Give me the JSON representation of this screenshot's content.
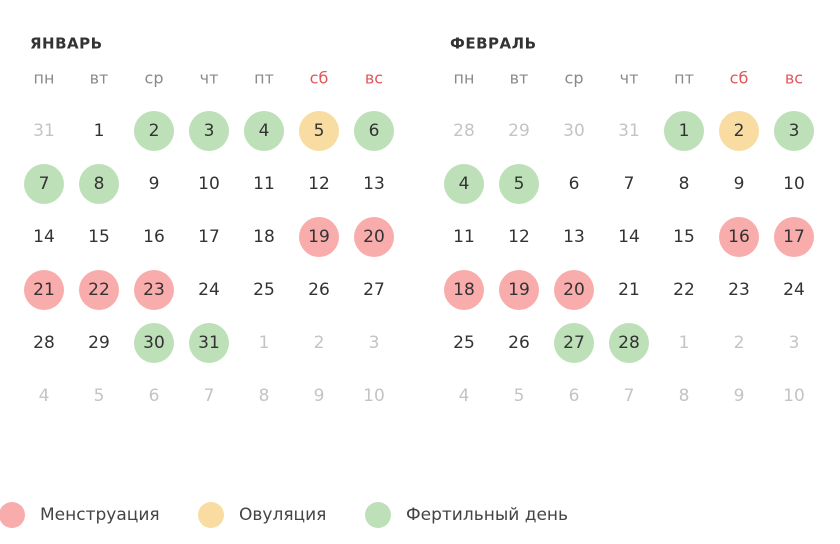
{
  "months": [
    {
      "name": "ЯНВАРЬ",
      "weekdays": [
        {
          "text": "пн",
          "color": "#8a8a8a"
        },
        {
          "text": "вт",
          "color": "#8a8a8a"
        },
        {
          "text": "ср",
          "color": "#8a8a8a"
        },
        {
          "text": "чт",
          "color": "#8a8a8a"
        },
        {
          "text": "пт",
          "color": "#8a8a8a"
        },
        {
          "text": "сб",
          "color": "#e0575b"
        },
        {
          "text": "вс",
          "color": "#e0575b"
        }
      ],
      "weeks": [
        [
          {
            "day": 31,
            "muted": true
          },
          {
            "day": 1
          },
          {
            "day": 2,
            "fill": "#bde0b8"
          },
          {
            "day": 3,
            "fill": "#bde0b8"
          },
          {
            "day": 4,
            "fill": "#bde0b8"
          },
          {
            "day": 5,
            "fill": "#f8dca2"
          },
          {
            "day": 6,
            "fill": "#bde0b8"
          }
        ],
        [
          {
            "day": 7,
            "fill": "#bde0b8"
          },
          {
            "day": 8,
            "fill": "#bde0b8"
          },
          {
            "day": 9
          },
          {
            "day": 10
          },
          {
            "day": 11
          },
          {
            "day": 12
          },
          {
            "day": 13
          }
        ],
        [
          {
            "day": 14
          },
          {
            "day": 15
          },
          {
            "day": 16
          },
          {
            "day": 17
          },
          {
            "day": 18
          },
          {
            "day": 19,
            "fill": "#f8acab"
          },
          {
            "day": 20,
            "fill": "#f8acab"
          }
        ],
        [
          {
            "day": 21,
            "fill": "#f8acab"
          },
          {
            "day": 22,
            "fill": "#f8acab"
          },
          {
            "day": 23,
            "fill": "#f8acab"
          },
          {
            "day": 24
          },
          {
            "day": 25
          },
          {
            "day": 26
          },
          {
            "day": 27
          }
        ],
        [
          {
            "day": 28
          },
          {
            "day": 29
          },
          {
            "day": 30,
            "fill": "#bde0b8"
          },
          {
            "day": 31,
            "fill": "#bde0b8"
          },
          {
            "day": 1,
            "muted": true
          },
          {
            "day": 2,
            "muted": true
          },
          {
            "day": 3,
            "muted": true
          }
        ],
        [
          {
            "day": 4,
            "muted": true
          },
          {
            "day": 5,
            "muted": true
          },
          {
            "day": 6,
            "muted": true
          },
          {
            "day": 7,
            "muted": true
          },
          {
            "day": 8,
            "muted": true
          },
          {
            "day": 9,
            "muted": true
          },
          {
            "day": 10,
            "muted": true
          }
        ]
      ]
    },
    {
      "name": "ФЕВРАЛЬ",
      "weekdays": [
        {
          "text": "пн",
          "color": "#8a8a8a"
        },
        {
          "text": "вт",
          "color": "#8a8a8a"
        },
        {
          "text": "ср",
          "color": "#8a8a8a"
        },
        {
          "text": "чт",
          "color": "#8a8a8a"
        },
        {
          "text": "пт",
          "color": "#8a8a8a"
        },
        {
          "text": "сб",
          "color": "#e0575b"
        },
        {
          "text": "вс",
          "color": "#e0575b"
        }
      ],
      "weeks": [
        [
          {
            "day": 28,
            "muted": true
          },
          {
            "day": 29,
            "muted": true
          },
          {
            "day": 30,
            "muted": true
          },
          {
            "day": 31,
            "muted": true
          },
          {
            "day": 1,
            "fill": "#bde0b8"
          },
          {
            "day": 2,
            "fill": "#f8dca2"
          },
          {
            "day": 3,
            "fill": "#bde0b8"
          }
        ],
        [
          {
            "day": 4,
            "fill": "#bde0b8"
          },
          {
            "day": 5,
            "fill": "#bde0b8"
          },
          {
            "day": 6
          },
          {
            "day": 7
          },
          {
            "day": 8
          },
          {
            "day": 9
          },
          {
            "day": 10
          }
        ],
        [
          {
            "day": 11
          },
          {
            "day": 12
          },
          {
            "day": 13
          },
          {
            "day": 14
          },
          {
            "day": 15
          },
          {
            "day": 16,
            "fill": "#f8acab"
          },
          {
            "day": 17,
            "fill": "#f8acab"
          }
        ],
        [
          {
            "day": 18,
            "fill": "#f8acab"
          },
          {
            "day": 19,
            "fill": "#f8acab"
          },
          {
            "day": 20,
            "fill": "#f8acab"
          },
          {
            "day": 21
          },
          {
            "day": 22
          },
          {
            "day": 23
          },
          {
            "day": 24
          }
        ],
        [
          {
            "day": 25
          },
          {
            "day": 26
          },
          {
            "day": 27,
            "fill": "#bde0b8"
          },
          {
            "day": 28,
            "fill": "#bde0b8"
          },
          {
            "day": 1,
            "muted": true
          },
          {
            "day": 2,
            "muted": true
          },
          {
            "day": 3,
            "muted": true
          }
        ],
        [
          {
            "day": 4,
            "muted": true
          },
          {
            "day": 5,
            "muted": true
          },
          {
            "day": 6,
            "muted": true
          },
          {
            "day": 7,
            "muted": true
          },
          {
            "day": 8,
            "muted": true
          },
          {
            "day": 9,
            "muted": true
          },
          {
            "day": 10,
            "muted": true
          }
        ]
      ]
    }
  ],
  "legend": [
    {
      "label": "Менструация",
      "color": "#f8acab"
    },
    {
      "label": "Овуляция",
      "color": "#f8dca2"
    },
    {
      "label": "Фертильный день",
      "color": "#bde0b8"
    }
  ]
}
